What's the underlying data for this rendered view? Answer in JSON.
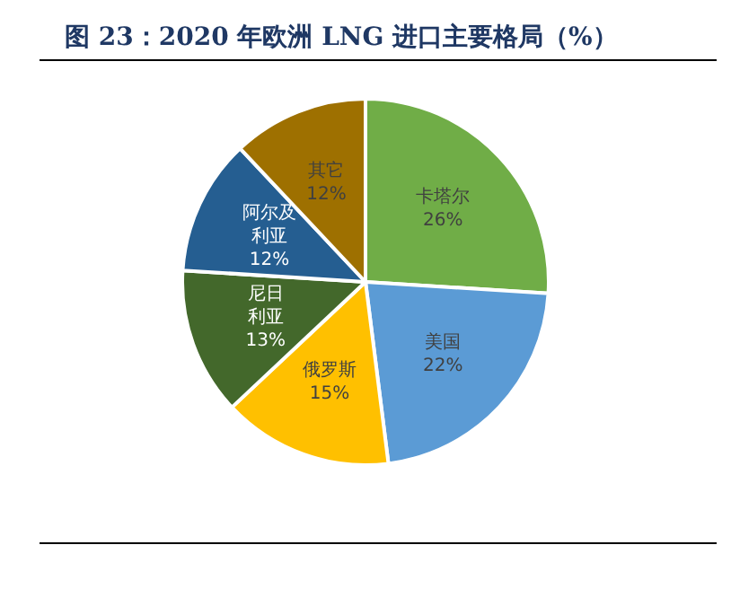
{
  "chart_data": {
    "type": "pie",
    "title": "图 23：2020 年欧洲 LNG 进口主要格局（%）",
    "categories": [
      "卡塔尔",
      "美国",
      "俄罗斯",
      "尼日利亚",
      "阿尔及利亚",
      "其它"
    ],
    "values": [
      26,
      22,
      15,
      13,
      12,
      12
    ],
    "value_labels": [
      "26%",
      "22%",
      "15%",
      "13%",
      "12%",
      "12%"
    ],
    "colors": [
      "#70ad47",
      "#5b9bd5",
      "#ffc000",
      "#43682b",
      "#255e91",
      "#9e7000"
    ],
    "legend": false
  }
}
